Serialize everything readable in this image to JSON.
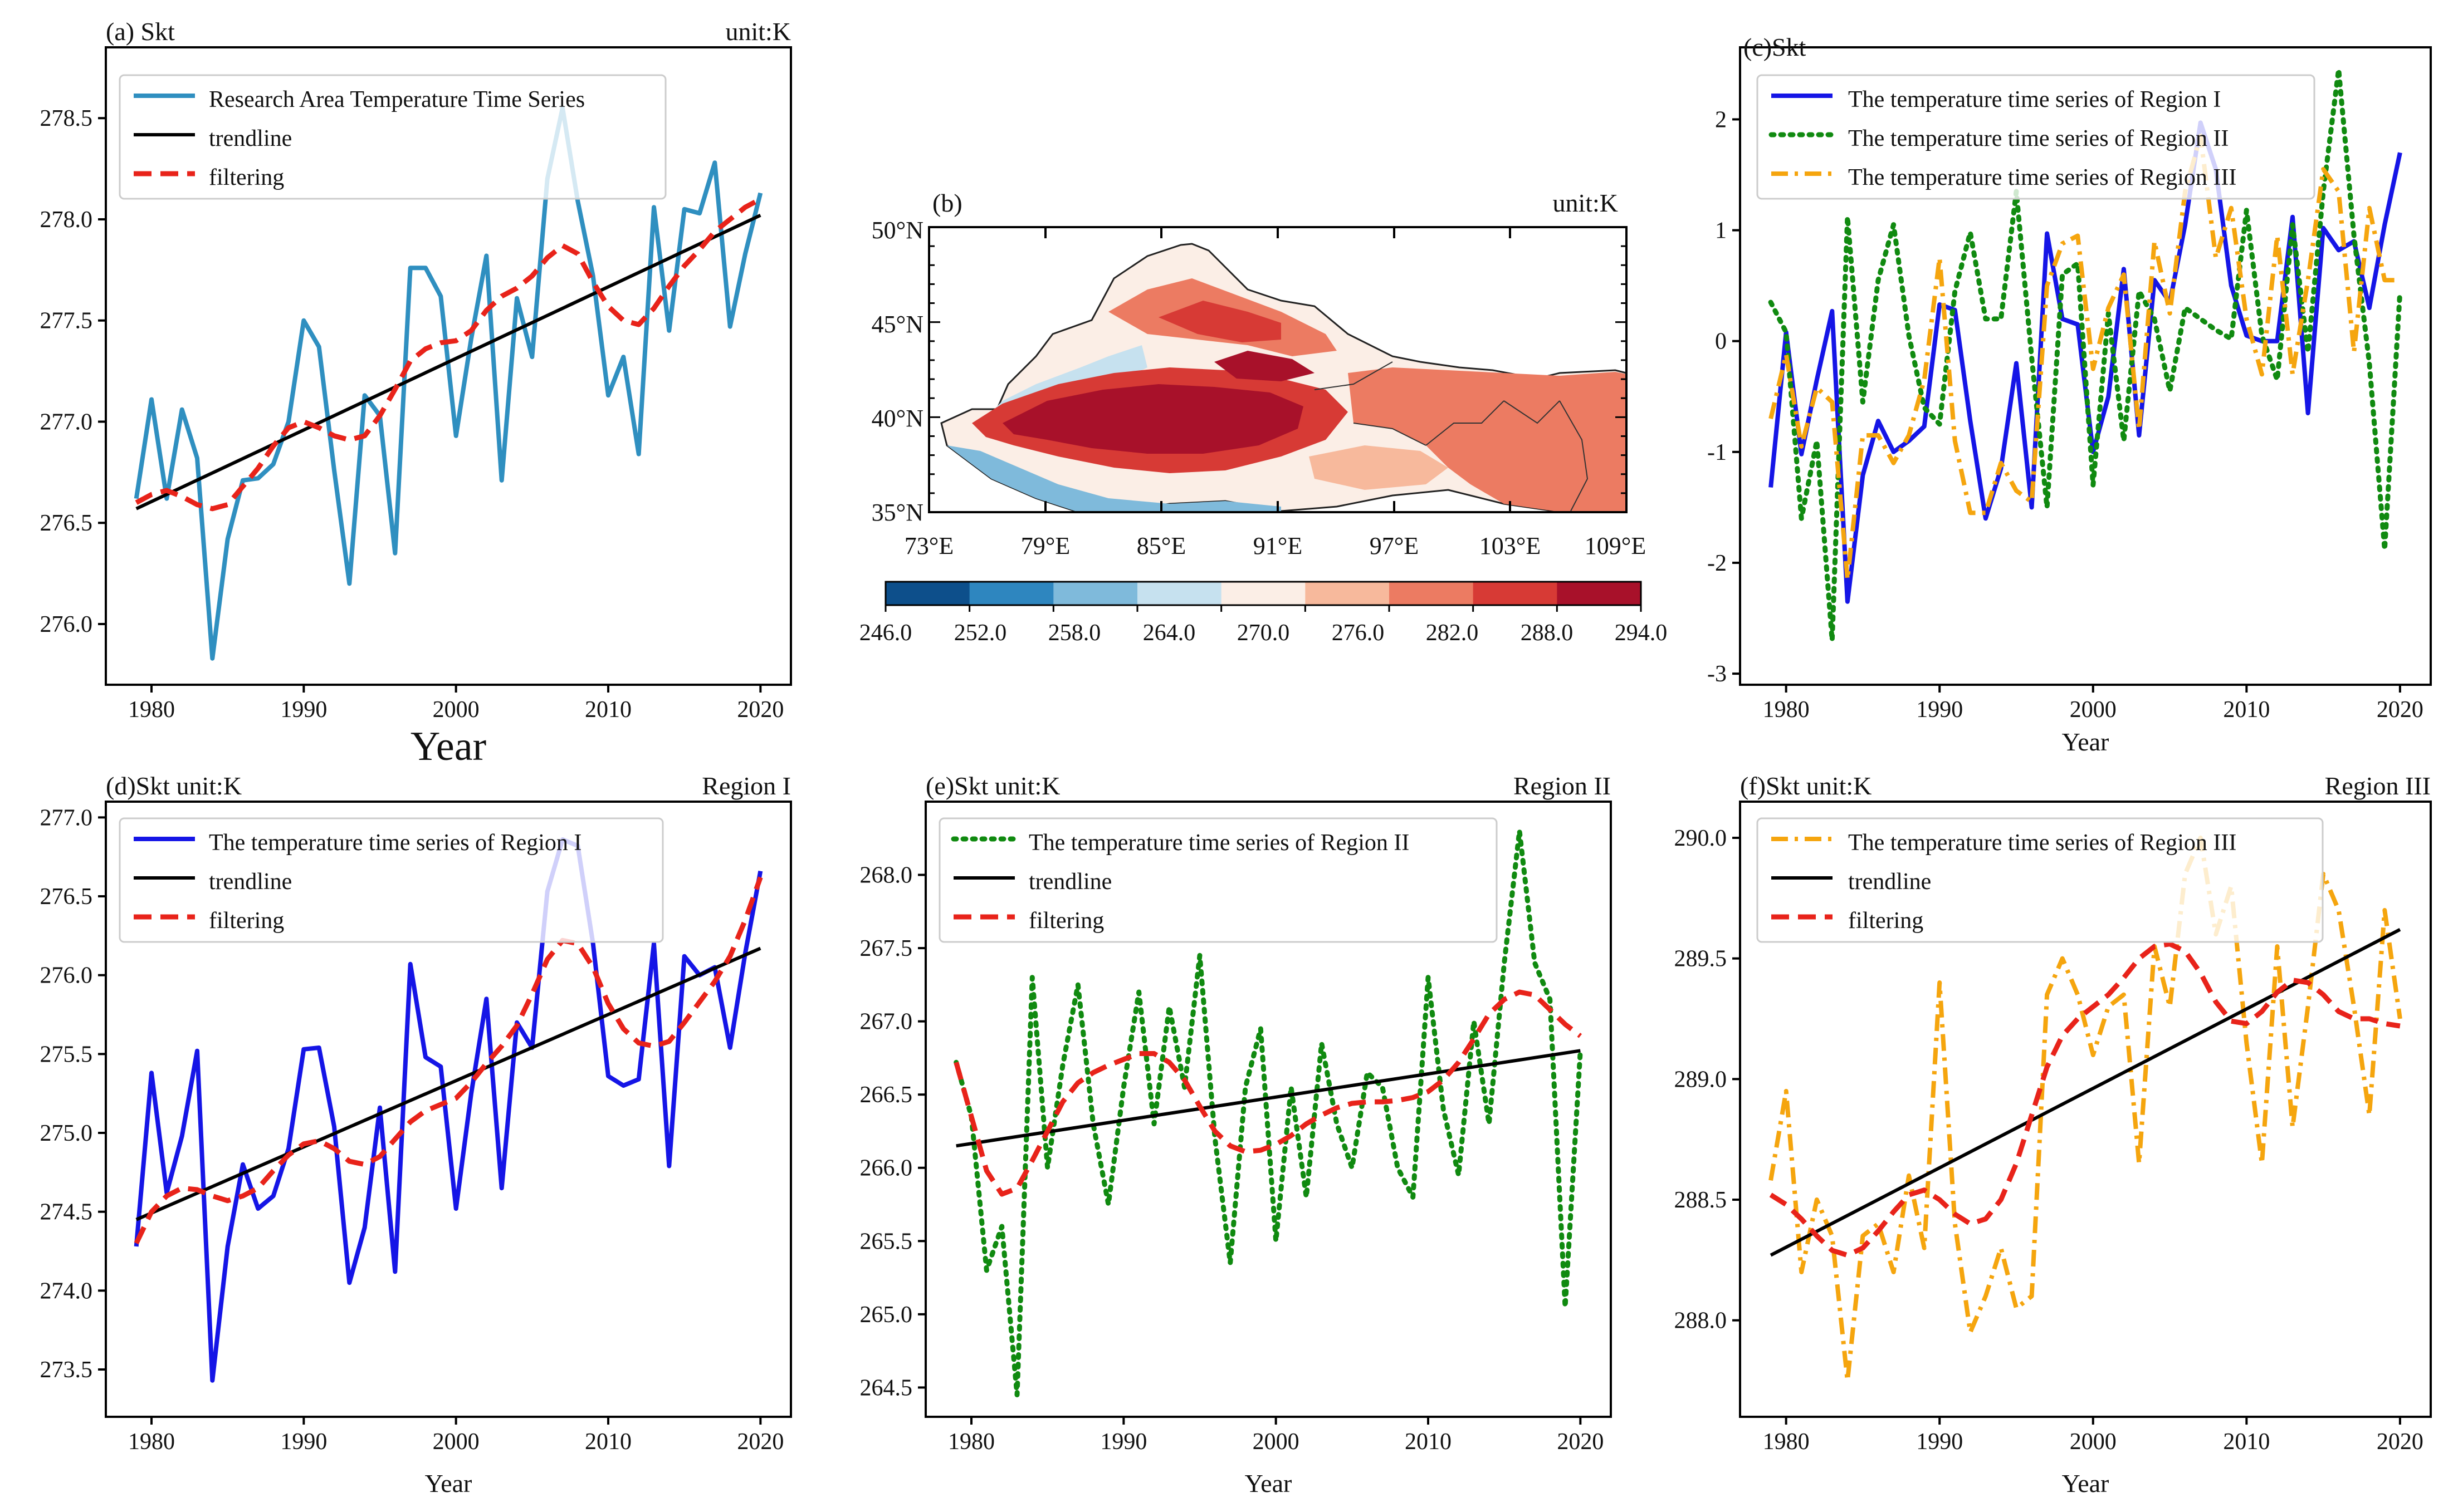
{
  "colors": {
    "blue_a": "#2f8fc0",
    "black": "#000000",
    "red": "#e8231a",
    "blue": "#1515e6",
    "green": "#108a10",
    "orange": "#f5a50e"
  },
  "map_colorbar": {
    "ticks": [
      "246.0",
      "252.0",
      "258.0",
      "264.0",
      "270.0",
      "276.0",
      "282.0",
      "288.0",
      "294.0"
    ],
    "colors": [
      "#0d4f8b",
      "#2e86bf",
      "#7fbadb",
      "#c6e1ef",
      "#fbeee6",
      "#f7b99c",
      "#ec7b62",
      "#d73a35",
      "#a8112a"
    ]
  },
  "panel_b": {
    "label": "(b)",
    "unit": "unit:K",
    "lat_ticks": [
      "50°N",
      "45°N",
      "40°N",
      "35°N"
    ],
    "lon_ticks": [
      "73°E",
      "79°E",
      "85°E",
      "91°E",
      "97°E",
      "103°E",
      "109°E"
    ]
  },
  "chart_data": [
    {
      "id": "a",
      "type": "line",
      "title_left": "(a) Skt",
      "title_right": "unit:K",
      "xlabel": "Year",
      "ylabel": "",
      "xlim": [
        1977,
        2022
      ],
      "ylim": [
        275.7,
        278.85
      ],
      "xticks": [
        "1980",
        "1990",
        "2000",
        "2010",
        "2020"
      ],
      "yticks": [
        "276.0",
        "276.5",
        "277.0",
        "277.5",
        "278.0",
        "278.5"
      ],
      "legend_position": "top-left",
      "years_start": 1979,
      "series": [
        {
          "name": "Research Area Temperature Time Series",
          "style": "solid",
          "color": "#2f8fc0",
          "values": [
            276.62,
            277.11,
            276.62,
            277.06,
            276.82,
            275.83,
            276.42,
            276.71,
            276.72,
            276.79,
            277.0,
            277.5,
            277.37,
            276.76,
            276.2,
            277.13,
            277.03,
            276.35,
            277.76,
            277.76,
            277.62,
            276.93,
            277.41,
            277.82,
            276.71,
            277.61,
            277.32,
            278.2,
            278.55,
            278.09,
            277.72,
            277.13,
            277.32,
            276.84,
            278.06,
            277.45,
            278.05,
            278.03,
            278.28,
            277.47,
            277.83,
            278.13
          ]
        },
        {
          "name": "trendline",
          "style": "trend",
          "color": "#000000",
          "values": [
            276.57,
            278.02
          ]
        },
        {
          "name": "filtering",
          "style": "dashed",
          "color": "#e8231a",
          "values": [
            276.6,
            276.64,
            276.66,
            276.63,
            276.59,
            276.57,
            276.59,
            276.68,
            276.77,
            276.88,
            276.97,
            277.0,
            276.97,
            276.93,
            276.91,
            276.93,
            277.03,
            277.16,
            277.3,
            277.36,
            277.39,
            277.4,
            277.45,
            277.55,
            277.62,
            277.66,
            277.72,
            277.81,
            277.87,
            277.83,
            277.69,
            277.57,
            277.5,
            277.48,
            277.56,
            277.67,
            277.77,
            277.85,
            277.94,
            278.0,
            278.06,
            278.1
          ]
        }
      ]
    },
    {
      "id": "c",
      "type": "line",
      "title_left": "(c)Skt",
      "title_right": "",
      "xlabel": "Year",
      "ylabel": "",
      "xlim": [
        1977,
        2022
      ],
      "ylim": [
        -3.1,
        2.65
      ],
      "xticks": [
        "1980",
        "1990",
        "2000",
        "2010",
        "2020"
      ],
      "yticks": [
        "-3",
        "-2",
        "-1",
        "0",
        "1",
        "2"
      ],
      "legend_position": "top-left",
      "years_start": 1979,
      "series": [
        {
          "name": "The temperature time series of Region I",
          "style": "solid",
          "color": "#1515e6",
          "values": [
            -1.32,
            0.08,
            -1.02,
            -0.35,
            0.27,
            -2.35,
            -1.21,
            -0.72,
            -1.0,
            -0.9,
            -0.77,
            0.33,
            0.28,
            -0.72,
            -1.6,
            -1.15,
            -0.2,
            -1.5,
            0.97,
            0.2,
            0.15,
            -1.0,
            -0.5,
            0.65,
            -0.85,
            0.55,
            0.35,
            1.05,
            1.97,
            1.55,
            0.5,
            0.05,
            0.0,
            0.0,
            1.12,
            -0.65,
            1.02,
            0.82,
            0.9,
            0.3,
            1.05,
            1.7
          ]
        },
        {
          "name": "The temperature time series of Region II",
          "style": "dotted",
          "color": "#108a10",
          "values": [
            0.35,
            0.08,
            -1.6,
            -0.9,
            -2.7,
            1.12,
            -0.55,
            0.55,
            1.05,
            0.05,
            -0.6,
            -0.75,
            0.45,
            0.98,
            0.2,
            0.2,
            1.35,
            -0.15,
            -1.5,
            0.6,
            0.7,
            -1.3,
            0.25,
            -0.9,
            0.45,
            0.2,
            -0.45,
            0.3,
            0.2,
            0.1,
            0.02,
            1.18,
            0.05,
            -0.35,
            1.05,
            -0.1,
            1.35,
            2.45,
            0.95,
            -0.2,
            -1.88,
            0.45
          ]
        },
        {
          "name": "The temperature time series of Region III",
          "style": "dashdot",
          "color": "#f5a50e",
          "values": [
            -0.7,
            -0.12,
            -0.95,
            -0.42,
            -0.55,
            -2.15,
            -0.85,
            -0.85,
            -1.1,
            -0.85,
            -0.35,
            0.75,
            -0.9,
            -1.55,
            -1.55,
            -1.1,
            -1.35,
            -1.45,
            0.5,
            0.88,
            0.95,
            -0.25,
            0.3,
            0.6,
            -0.8,
            0.9,
            0.25,
            1.35,
            1.85,
            0.75,
            1.2,
            0.2,
            -0.3,
            0.95,
            -0.3,
            0.55,
            1.55,
            1.35,
            -0.1,
            1.2,
            0.55,
            0.55
          ]
        }
      ]
    },
    {
      "id": "d",
      "type": "line",
      "title_left": "(d)Skt unit:K",
      "title_right": "Region I",
      "xlabel": "Year",
      "ylabel": "",
      "xlim": [
        1977,
        2022
      ],
      "ylim": [
        273.2,
        277.1
      ],
      "xticks": [
        "1980",
        "1990",
        "2000",
        "2010",
        "2020"
      ],
      "yticks": [
        "273.5",
        "274.0",
        "274.5",
        "275.0",
        "275.5",
        "276.0",
        "276.5",
        "277.0"
      ],
      "legend_position": "top-left",
      "years_start": 1979,
      "series": [
        {
          "name": "The temperature time series of Region I",
          "style": "solid",
          "color": "#1515e6",
          "values": [
            274.28,
            275.38,
            274.62,
            274.98,
            275.52,
            273.43,
            274.28,
            274.8,
            274.52,
            274.6,
            274.9,
            275.53,
            275.54,
            275.04,
            274.05,
            274.4,
            275.16,
            274.12,
            276.07,
            275.48,
            275.42,
            274.52,
            275.25,
            275.85,
            274.65,
            275.7,
            275.54,
            276.53,
            276.86,
            276.82,
            276.2,
            275.36,
            275.3,
            275.34,
            276.2,
            274.79,
            276.12,
            276.0,
            276.05,
            275.54,
            276.14,
            276.66
          ]
        },
        {
          "name": "trendline",
          "style": "trend",
          "color": "#000000",
          "values": [
            274.45,
            276.17
          ]
        },
        {
          "name": "filtering",
          "style": "dashed",
          "color": "#e8231a",
          "values": [
            274.3,
            274.5,
            274.6,
            274.65,
            274.64,
            274.6,
            274.57,
            274.6,
            274.65,
            274.76,
            274.86,
            274.93,
            274.95,
            274.9,
            274.82,
            274.8,
            274.85,
            274.96,
            275.07,
            275.14,
            275.18,
            275.22,
            275.32,
            275.44,
            275.55,
            275.68,
            275.88,
            276.1,
            276.22,
            276.2,
            276.05,
            275.82,
            275.66,
            275.57,
            275.55,
            275.58,
            275.7,
            275.83,
            275.96,
            276.12,
            276.35,
            276.62
          ]
        }
      ]
    },
    {
      "id": "e",
      "type": "line",
      "title_left": "(e)Skt unit:K",
      "title_right": "Region II",
      "xlabel": "Year",
      "ylabel": "",
      "xlim": [
        1977,
        2022
      ],
      "ylim": [
        264.3,
        268.5
      ],
      "xticks": [
        "1980",
        "1990",
        "2000",
        "2010",
        "2020"
      ],
      "yticks": [
        "264.5",
        "265.0",
        "265.5",
        "266.0",
        "266.5",
        "267.0",
        "267.5",
        "268.0"
      ],
      "legend_position": "top-left",
      "years_start": 1979,
      "series": [
        {
          "name": "The temperature time series of Region II",
          "style": "dotted",
          "color": "#108a10",
          "values": [
            266.72,
            266.35,
            265.3,
            265.6,
            264.45,
            267.3,
            266.0,
            266.7,
            267.25,
            266.3,
            265.75,
            266.55,
            267.2,
            266.3,
            267.1,
            266.55,
            267.45,
            266.2,
            265.35,
            266.55,
            266.95,
            265.5,
            266.55,
            265.8,
            266.85,
            266.3,
            266.0,
            266.65,
            266.55,
            266.0,
            265.8,
            267.3,
            266.4,
            265.95,
            267.0,
            266.3,
            267.4,
            268.3,
            267.4,
            267.15,
            265.05,
            266.8
          ]
        },
        {
          "name": "trendline",
          "style": "trend",
          "color": "#000000",
          "values": [
            266.15,
            266.8
          ]
        },
        {
          "name": "filtering",
          "style": "dashed",
          "color": "#e8231a",
          "values": [
            266.72,
            266.35,
            265.98,
            265.82,
            265.86,
            266.05,
            266.25,
            266.45,
            266.58,
            266.65,
            266.7,
            266.74,
            266.78,
            266.78,
            266.72,
            266.6,
            266.42,
            266.25,
            266.15,
            266.11,
            266.12,
            266.16,
            266.22,
            266.3,
            266.36,
            266.41,
            266.44,
            266.45,
            266.45,
            266.46,
            266.48,
            266.52,
            266.6,
            266.72,
            266.88,
            267.05,
            267.15,
            267.2,
            267.18,
            267.08,
            266.98,
            266.9
          ]
        }
      ]
    },
    {
      "id": "f",
      "type": "line",
      "title_left": "(f)Skt unit:K",
      "title_right": "Region III",
      "xlabel": "Year",
      "ylabel": "",
      "xlim": [
        1977,
        2022
      ],
      "ylim": [
        287.6,
        290.15
      ],
      "xticks": [
        "1980",
        "1990",
        "2000",
        "2010",
        "2020"
      ],
      "yticks": [
        "288.0",
        "288.5",
        "289.0",
        "289.5",
        "290.0"
      ],
      "legend_position": "top-left",
      "years_start": 1979,
      "series": [
        {
          "name": "The temperature time series of Region III",
          "style": "dashdot",
          "color": "#f5a50e",
          "values": [
            288.58,
            288.95,
            288.2,
            288.5,
            288.35,
            287.75,
            288.35,
            288.4,
            288.2,
            288.6,
            288.3,
            289.4,
            288.4,
            287.95,
            288.1,
            288.3,
            288.05,
            288.1,
            289.35,
            289.5,
            289.35,
            289.1,
            289.3,
            289.35,
            288.65,
            289.55,
            289.3,
            289.85,
            290.0,
            289.6,
            289.8,
            289.15,
            288.65,
            289.55,
            288.8,
            289.3,
            289.85,
            289.7,
            289.3,
            288.85,
            289.7,
            289.25
          ]
        },
        {
          "name": "trendline",
          "style": "trend",
          "color": "#000000",
          "values": [
            288.27,
            289.62
          ]
        },
        {
          "name": "filtering",
          "style": "dashed",
          "color": "#e8231a",
          "values": [
            288.52,
            288.48,
            288.42,
            288.35,
            288.29,
            288.27,
            288.3,
            288.37,
            288.45,
            288.52,
            288.54,
            288.5,
            288.44,
            288.4,
            288.42,
            288.5,
            288.65,
            288.85,
            289.05,
            289.18,
            289.25,
            289.3,
            289.35,
            289.42,
            289.5,
            289.55,
            289.56,
            289.53,
            289.44,
            289.32,
            289.24,
            289.23,
            289.28,
            289.36,
            289.41,
            289.4,
            289.35,
            289.28,
            289.25,
            289.25,
            289.23,
            289.22
          ]
        }
      ]
    }
  ]
}
